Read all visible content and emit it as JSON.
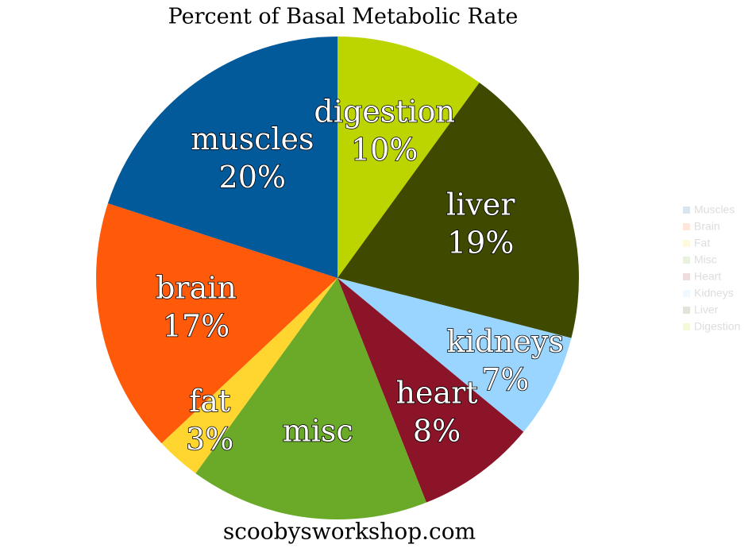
{
  "chart_data": {
    "type": "pie",
    "title": "Percent of Basal Metabolic Rate",
    "footer": "scoobysworkshop.com",
    "categories": [
      "Digestion",
      "Liver",
      "Kidneys",
      "Heart",
      "Misc",
      "Fat",
      "Brain",
      "Muscles"
    ],
    "slice_labels": [
      "digestion",
      "liver",
      "kidneys",
      "heart",
      "misc",
      "fat",
      "brain",
      "muscles"
    ],
    "values": [
      10,
      19,
      7,
      8,
      16,
      3,
      17,
      20
    ],
    "value_labels": [
      "10%",
      "19%",
      "7%",
      "8%",
      null,
      "3%",
      "17%",
      "20%"
    ],
    "colors": [
      "#bcd400",
      "#3f4a00",
      "#99d5ff",
      "#8b1428",
      "#6aaa28",
      "#ffd630",
      "#ff5a0a",
      "#035a9a"
    ],
    "legend": "right"
  }
}
